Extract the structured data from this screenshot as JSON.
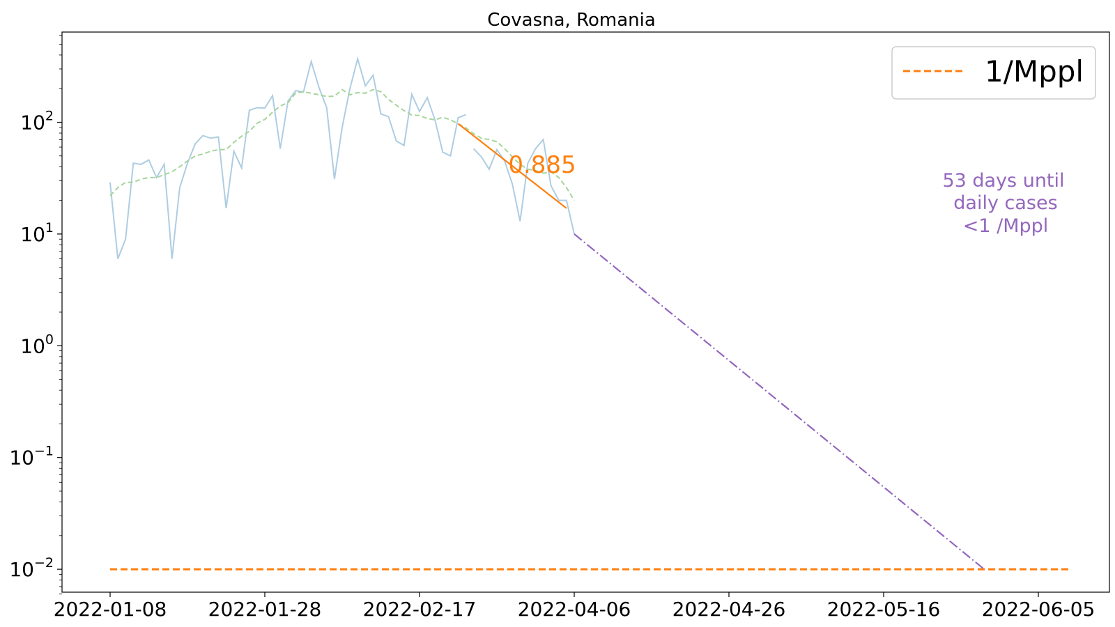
{
  "chart_data": {
    "type": "line",
    "title": "Covasna, Romania",
    "xlabel": "",
    "ylabel": "",
    "y_scale": "log",
    "ylim": [
      0.006,
      600
    ],
    "x_tick_labels": [
      "2022-01-08",
      "2022-01-28",
      "2022-02-17",
      "2022-04-06",
      "2022-04-26",
      "2022-05-16",
      "2022-06-05"
    ],
    "y_tick_labels": [
      {
        "value": 100,
        "base": "10",
        "exp": "2"
      },
      {
        "value": 10,
        "base": "10",
        "exp": "1"
      },
      {
        "value": 1,
        "base": "10",
        "exp": "0"
      },
      {
        "value": 0.1,
        "base": "10",
        "exp": "−1"
      },
      {
        "value": 0.01,
        "base": "10",
        "exp": "−2"
      }
    ],
    "grid": false,
    "legend": {
      "position": "top-right",
      "entries": [
        {
          "label": "1/Mppl",
          "color": "#ff7f0e",
          "style": "dashed"
        }
      ]
    },
    "series": [
      {
        "style": "solid",
        "color": "#aecde2",
        "values": [
          29,
          6,
          9,
          43,
          42,
          46,
          32,
          42,
          6,
          26,
          43,
          64,
          76,
          72,
          74,
          17,
          55,
          39,
          128,
          135,
          134,
          173,
          58,
          155,
          192,
          187,
          350,
          205,
          135,
          31,
          90,
          200,
          370,
          212,
          264,
          119,
          112,
          68,
          62,
          178,
          125,
          166,
          105,
          54,
          50,
          110,
          117
        ]
      },
      {
        "style": "dashed",
        "color": "#a6d59b",
        "values": [
          22,
          26,
          29,
          29,
          31,
          32,
          32,
          34,
          36,
          40,
          45,
          50,
          52,
          55,
          57,
          57,
          66,
          75,
          83,
          98,
          106,
          123,
          140,
          150,
          183,
          187,
          182,
          176,
          170,
          171,
          196,
          176,
          184,
          182,
          196,
          188,
          160,
          142,
          127,
          116,
          115,
          108,
          105,
          111,
          105,
          97,
          89,
          79,
          72,
          70,
          67,
          58,
          49,
          42,
          38,
          37,
          35,
          36,
          32,
          26,
          20
        ]
      },
      {
        "style": "solid",
        "color": "#aecde2",
        "values": [
          58,
          49,
          38,
          57,
          45,
          28,
          13,
          43,
          58,
          70,
          27,
          20,
          20,
          10
        ]
      }
    ],
    "fit": {
      "label": "0.885",
      "color": "#ff7f0e",
      "start_index": 45,
      "end_index": 59,
      "y_start": 97,
      "y_end": 17
    },
    "projection": {
      "color": "#9467bd",
      "start_index": 60,
      "start_value": 10,
      "end_index": 113,
      "end_value": 0.01
    },
    "threshold": {
      "value": 0.01,
      "color": "#ff7f0e",
      "start_index": 0,
      "end_index": 124
    },
    "annotation": {
      "lines": [
        "53 days until",
        "daily cases",
        "<1 /Mppl"
      ],
      "color": "#9467bd"
    }
  }
}
